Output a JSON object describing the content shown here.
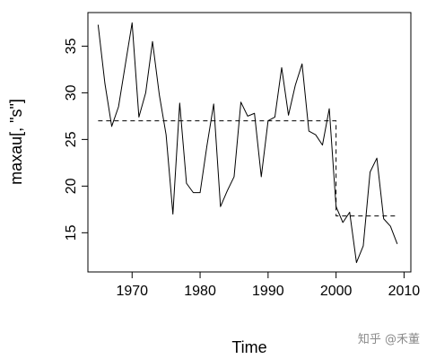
{
  "chart_data": {
    "type": "line",
    "xlabel": "Time",
    "ylabel": "maxau[, \"s\"]",
    "xlim": [
      1963.5,
      2011
    ],
    "ylim": [
      10.8,
      38.6
    ],
    "x_ticks": [
      1970,
      1980,
      1990,
      2000,
      2010
    ],
    "y_ticks": [
      15,
      20,
      25,
      30,
      35
    ],
    "grid": false,
    "series": [
      {
        "style": "solid",
        "x": [
          1965,
          1966,
          1967,
          1968,
          1969,
          1970,
          1971,
          1972,
          1973,
          1974,
          1975,
          1976,
          1977,
          1978,
          1979,
          1980,
          1981,
          1982,
          1983,
          1984,
          1985,
          1986,
          1987,
          1988,
          1989,
          1990,
          1991,
          1992,
          1993,
          1994,
          1995,
          1996,
          1997,
          1998,
          1999,
          2000,
          2001,
          2002,
          2003,
          2004,
          2005,
          2006,
          2007,
          2008,
          2009
        ],
        "values": [
          37.3,
          31.0,
          26.4,
          28.5,
          33.0,
          37.5,
          27.4,
          30.0,
          35.5,
          29.8,
          25.5,
          17.0,
          28.9,
          20.3,
          19.3,
          19.3,
          24.3,
          28.8,
          17.8,
          19.5,
          21.0,
          29.0,
          27.5,
          27.8,
          21.0,
          27.0,
          27.4,
          32.7,
          27.6,
          30.8,
          33.1,
          25.9,
          25.5,
          24.4,
          28.3,
          17.8,
          16.1,
          17.2,
          11.8,
          13.6,
          21.5,
          23.0,
          16.5,
          15.7,
          13.8
        ]
      },
      {
        "style": "dashed",
        "x": [
          1965,
          2000,
          2000,
          2009
        ],
        "values": [
          27.0,
          27.0,
          16.8,
          16.8
        ]
      }
    ]
  },
  "watermark": "知乎 @禾董"
}
